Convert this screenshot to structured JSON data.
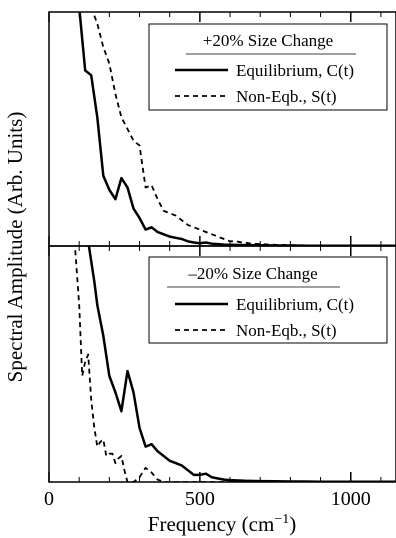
{
  "chart_data": [
    {
      "type": "line",
      "panel": "top",
      "legend_title": "+20% Size Change",
      "legend_placement": "top-right",
      "xlim": [
        0,
        1150
      ],
      "ylim": [
        0,
        1
      ],
      "series": [
        {
          "name": "Equilibrium, C(t)",
          "style": "solid",
          "x": [
            100,
            120,
            140,
            160,
            180,
            200,
            220,
            240,
            260,
            280,
            300,
            320,
            340,
            360,
            380,
            400,
            420,
            440,
            460,
            480,
            500,
            520,
            540,
            560,
            580,
            600,
            650,
            700,
            750,
            800,
            850,
            900,
            950,
            1000,
            1050,
            1100,
            1150
          ],
          "y": [
            1.02,
            0.75,
            0.73,
            0.55,
            0.3,
            0.24,
            0.2,
            0.29,
            0.25,
            0.16,
            0.12,
            0.07,
            0.08,
            0.06,
            0.05,
            0.04,
            0.035,
            0.03,
            0.02,
            0.015,
            0.012,
            0.015,
            0.01,
            0.008,
            0.006,
            0.005,
            0.004,
            0.003,
            0.002,
            0.002,
            0.001,
            0.001,
            0.001,
            0.001,
            0.001,
            0.001,
            0.001
          ]
        },
        {
          "name": "Non-Eqb., S(t)",
          "style": "dashed",
          "x": [
            140,
            160,
            180,
            200,
            220,
            240,
            260,
            280,
            300,
            320,
            340,
            360,
            380,
            400,
            420,
            440,
            460,
            480,
            500,
            520,
            540,
            560,
            580,
            600,
            620,
            640,
            660,
            680,
            700,
            750,
            800,
            850,
            900,
            950,
            1000,
            1050,
            1100,
            1150
          ],
          "y": [
            1.02,
            0.95,
            0.85,
            0.78,
            0.65,
            0.55,
            0.5,
            0.45,
            0.43,
            0.25,
            0.26,
            0.2,
            0.15,
            0.14,
            0.13,
            0.11,
            0.09,
            0.08,
            0.07,
            0.06,
            0.05,
            0.04,
            0.03,
            0.02,
            0.02,
            0.015,
            0.012,
            0.01,
            0.008,
            0.005,
            0.004,
            0.003,
            0.002,
            0.002,
            0.001,
            0.001,
            0.001,
            0.001
          ]
        }
      ]
    },
    {
      "type": "line",
      "panel": "bottom",
      "legend_title": "–20% Size Change",
      "legend_placement": "top-right",
      "xlim": [
        0,
        1150
      ],
      "ylim": [
        0,
        1
      ],
      "series": [
        {
          "name": "Equilibrium, C(t)",
          "style": "solid",
          "x": [
            130,
            150,
            160,
            180,
            200,
            220,
            240,
            260,
            280,
            300,
            320,
            340,
            360,
            380,
            400,
            420,
            440,
            460,
            480,
            500,
            520,
            540,
            560,
            580,
            600,
            650,
            700,
            750,
            800,
            850,
            900,
            950,
            1000,
            1050,
            1100,
            1150
          ],
          "y": [
            1.02,
            0.85,
            0.75,
            0.62,
            0.45,
            0.38,
            0.3,
            0.47,
            0.38,
            0.23,
            0.15,
            0.16,
            0.13,
            0.11,
            0.09,
            0.08,
            0.07,
            0.05,
            0.03,
            0.03,
            0.035,
            0.02,
            0.015,
            0.01,
            0.008,
            0.005,
            0.004,
            0.003,
            0.002,
            0.002,
            0.001,
            0.001,
            0.001,
            0.001,
            0.001,
            0.001
          ]
        },
        {
          "name": "Non-Eqb., S(t)",
          "style": "dashed",
          "x": [
            85,
            100,
            110,
            120,
            130,
            140,
            150,
            160,
            170,
            180,
            190,
            200,
            210,
            220,
            230,
            240,
            250,
            260,
            280,
            300,
            320,
            340,
            360,
            380,
            400,
            420,
            440,
            460,
            480,
            500,
            550,
            600,
            650,
            700,
            1150
          ],
          "y": [
            1.02,
            0.75,
            0.45,
            0.51,
            0.54,
            0.35,
            0.23,
            0.15,
            0.17,
            0.18,
            0.11,
            0.12,
            0.12,
            0.08,
            0.1,
            0.11,
            0.05,
            0.0,
            0.0,
            0.02,
            0.06,
            0.04,
            0.01,
            0.0,
            0.0,
            0.0,
            0.0,
            0.0,
            0.0,
            0.0,
            0.0,
            0.0,
            0.0,
            0.0,
            0.0
          ]
        }
      ]
    }
  ],
  "axes": {
    "xlabel_main": "Frequency (cm",
    "xlabel_sup": "−1",
    "xlabel_close": ")",
    "ylabel": "Spectral Amplitude (Arb. Units)",
    "x_ticks": [
      "0",
      "500",
      "1000"
    ],
    "x_tick_values": [
      0,
      500,
      1000
    ]
  }
}
